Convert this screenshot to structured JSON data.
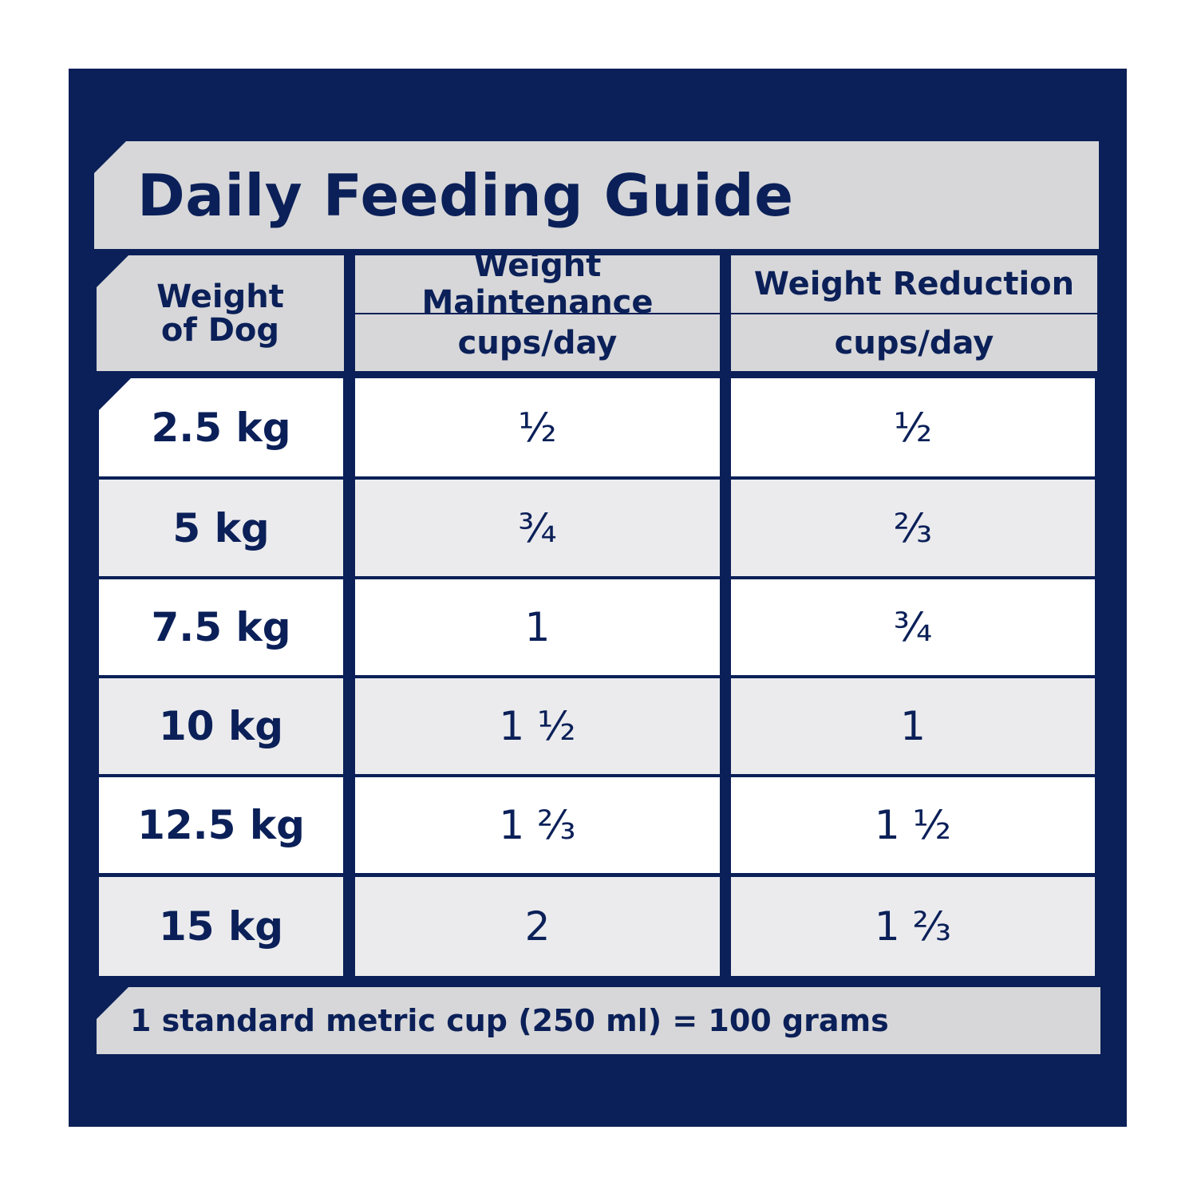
{
  "title": "Daily Feeding Guide",
  "header": {
    "weight_line1": "Weight",
    "weight_line2": "of Dog",
    "maintenance": "Weight Maintenance",
    "reduction": "Weight Reduction",
    "maintenance_unit": "cups/day",
    "reduction_unit": "cups/day"
  },
  "rows": [
    {
      "weight": "2.5 kg",
      "maintenance": "½",
      "reduction": "½"
    },
    {
      "weight": "5 kg",
      "maintenance": "¾",
      "reduction": "⅔"
    },
    {
      "weight": "7.5 kg",
      "maintenance": "1",
      "reduction": "¾"
    },
    {
      "weight": "10 kg",
      "maintenance": "1 ½",
      "reduction": "1"
    },
    {
      "weight": "12.5 kg",
      "maintenance": "1 ⅔",
      "reduction": "1 ½"
    },
    {
      "weight": "15 kg",
      "maintenance": "2",
      "reduction": "1 ⅔"
    }
  ],
  "footnote": "1 standard metric cup (250 ml) = 100 grams",
  "colors": {
    "navy": "#0b2058",
    "gray": "#d7d7d9",
    "light_gray": "#ebebee",
    "white": "#ffffff"
  }
}
